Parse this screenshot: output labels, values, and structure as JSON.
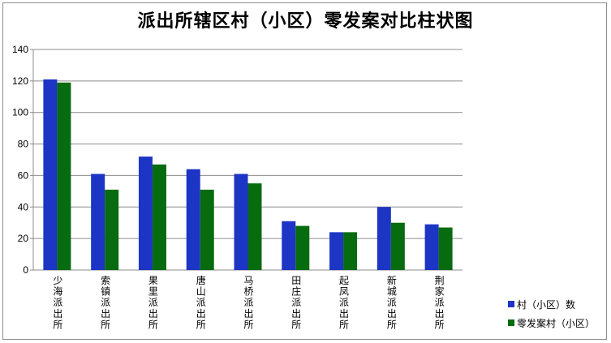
{
  "chart_data": {
    "type": "bar",
    "title": "派出所辖区村（小区）零发案对比柱状图",
    "categories": [
      "少海派出所",
      "索镇派出所",
      "果里派出所",
      "唐山派出所",
      "马桥派出所",
      "田庄派出所",
      "起凤派出所",
      "新城派出所",
      "荆家派出所"
    ],
    "series": [
      {
        "name": "村（小区）数",
        "color": "#1c35c4",
        "values": [
          121,
          61,
          72,
          64,
          61,
          31,
          24,
          40,
          29
        ]
      },
      {
        "name": "零发案村（小区）",
        "color": "#076b0f",
        "values": [
          119,
          51,
          67,
          51,
          55,
          28,
          24,
          30,
          27
        ]
      }
    ],
    "ylim": [
      0,
      140
    ],
    "yticks": [
      0,
      20,
      40,
      60,
      80,
      100,
      120,
      140
    ],
    "grid": true,
    "legend_position": "bottom-right"
  }
}
